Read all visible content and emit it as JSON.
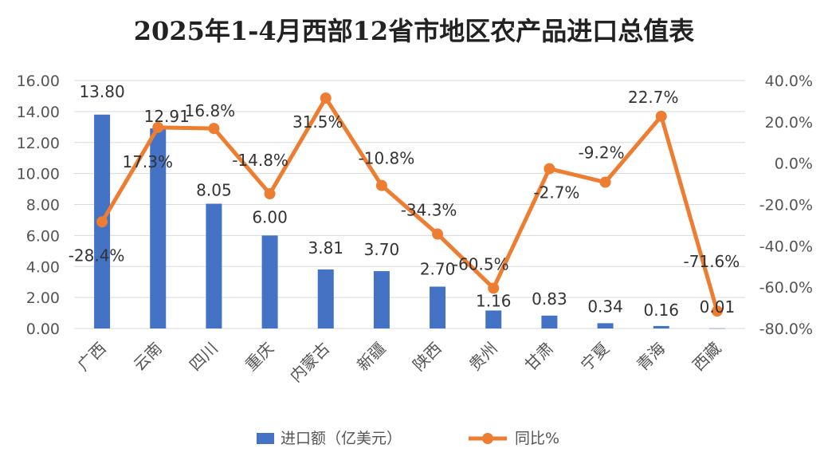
{
  "chart_data": {
    "type": "bar+line",
    "title": "2025年1-4月西部12省市地区农产品进口总值表",
    "categories": [
      "广西",
      "云南",
      "四川",
      "重庆",
      "内蒙古",
      "新疆",
      "陕西",
      "贵州",
      "甘肃",
      "宁夏",
      "青海",
      "西藏"
    ],
    "series": [
      {
        "name": "进口额（亿美元）",
        "type": "bar",
        "axis": "left",
        "color": "#4472C4",
        "values": [
          13.8,
          12.91,
          8.05,
          6.0,
          3.81,
          3.7,
          2.7,
          1.16,
          0.83,
          0.34,
          0.16,
          0.01
        ],
        "labels": [
          "13.80",
          "12.91",
          "8.05",
          "6.00",
          "3.81",
          "3.70",
          "2.70",
          "1.16",
          "0.83",
          "0.34",
          "0.16",
          "0.01"
        ]
      },
      {
        "name": "同比%",
        "type": "line",
        "axis": "right",
        "color": "#ED7D31",
        "values": [
          -28.4,
          17.3,
          16.8,
          -14.8,
          31.5,
          -10.8,
          -34.3,
          -60.5,
          -2.7,
          -9.2,
          22.7,
          -71.6
        ],
        "labels": [
          "-28.4%",
          "17.3%",
          "16.8%",
          "-14.8%",
          "31.5%",
          "-10.8%",
          "-34.3%",
          "-60.5%",
          "-2.7%",
          "-9.2%",
          "22.7%",
          "-71.6%"
        ]
      }
    ],
    "left_axis": {
      "min": 0,
      "max": 16,
      "step": 2,
      "tick_labels": [
        "0.00",
        "2.00",
        "4.00",
        "6.00",
        "8.00",
        "10.00",
        "12.00",
        "14.00",
        "16.00"
      ]
    },
    "right_axis": {
      "min": -80,
      "max": 40,
      "step": 20,
      "tick_labels": [
        "-80.0%",
        "-60.0%",
        "-40.0%",
        "-20.0%",
        "0.0%",
        "20.0%",
        "40.0%"
      ]
    },
    "gridlines": true,
    "legend_position": "bottom"
  }
}
